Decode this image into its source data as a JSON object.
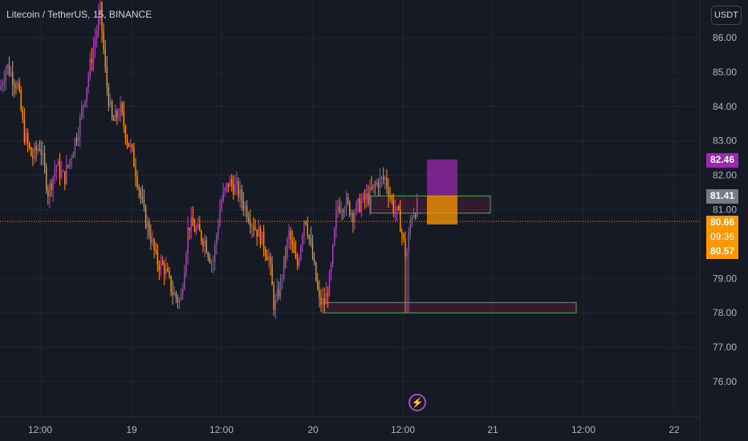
{
  "header": {
    "title": "Litecoin / TetherUS, 15, BINANCE",
    "currency_button": "USDT"
  },
  "colors": {
    "background": "#161a25",
    "bull": "#ab47bc",
    "bear": "#ff9800",
    "grid": "#232733",
    "axis_text": "#b2b5be",
    "box_green": "#4caf50",
    "last_price_line": "#ff9800"
  },
  "labels": {
    "target_price": "82.46",
    "entry_price": "81.41",
    "last_price": "80.66",
    "countdown": "09:36",
    "stop_price": "80.57"
  },
  "chart_data": {
    "type": "candlestick",
    "title": "Litecoin / TetherUS, 15, BINANCE",
    "ylim": [
      75.4,
      86.8
    ],
    "y_ticks": [
      "86.00",
      "85.00",
      "84.00",
      "83.00",
      "82.00",
      "81.00",
      "79.00",
      "78.00",
      "77.00",
      "76.00"
    ],
    "x_ticks": [
      "12:00",
      "19",
      "12:00",
      "20",
      "12:00",
      "21",
      "12:00",
      "22"
    ],
    "grid": true,
    "last_price": 80.66,
    "path": [
      [
        0,
        84.5
      ],
      [
        8,
        85.2
      ],
      [
        15,
        84.9
      ],
      [
        22,
        84.6
      ],
      [
        30,
        83.2
      ],
      [
        40,
        82.5
      ],
      [
        50,
        82.9
      ],
      [
        60,
        81.5
      ],
      [
        70,
        82.3
      ],
      [
        80,
        81.9
      ],
      [
        90,
        82.7
      ],
      [
        100,
        83.6
      ],
      [
        110,
        84.9
      ],
      [
        118,
        85.9
      ],
      [
        125,
        86.8
      ],
      [
        132,
        84.8
      ],
      [
        140,
        83.5
      ],
      [
        150,
        83.9
      ],
      [
        158,
        83.1
      ],
      [
        165,
        82.6
      ],
      [
        172,
        81.8
      ],
      [
        180,
        80.8
      ],
      [
        188,
        80.2
      ],
      [
        195,
        79.5
      ],
      [
        205,
        79.3
      ],
      [
        215,
        78.6
      ],
      [
        225,
        78.3
      ],
      [
        235,
        80.6
      ],
      [
        245,
        80.4
      ],
      [
        255,
        80.1
      ],
      [
        265,
        79.4
      ],
      [
        275,
        81.2
      ],
      [
        285,
        81.8
      ],
      [
        295,
        81.6
      ],
      [
        305,
        81.1
      ],
      [
        315,
        80.6
      ],
      [
        325,
        80.2
      ],
      [
        335,
        79.6
      ],
      [
        342,
        78.1
      ],
      [
        350,
        78.9
      ],
      [
        360,
        80.3
      ],
      [
        370,
        79.3
      ],
      [
        380,
        80.9
      ],
      [
        388,
        79.8
      ],
      [
        398,
        78.3
      ],
      [
        405,
        78.3
      ],
      [
        412,
        79.1
      ],
      [
        420,
        81.1
      ],
      [
        430,
        81.2
      ],
      [
        440,
        80.9
      ],
      [
        450,
        81.2
      ],
      [
        460,
        81.4
      ],
      [
        470,
        81.8
      ],
      [
        480,
        81.9
      ],
      [
        490,
        81.1
      ],
      [
        498,
        80.7
      ],
      [
        506,
        79.6
      ],
      [
        513,
        80.9
      ],
      [
        520,
        81.1
      ]
    ],
    "measure_boxes": [
      {
        "price_top": 82.46,
        "price_bottom": 81.41,
        "color": "#9c27b0"
      },
      {
        "price_top": 81.41,
        "price_bottom": 80.57,
        "color": "#ff9800"
      }
    ],
    "zones": [
      {
        "price_top": 81.4,
        "price_bottom": 80.9
      },
      {
        "price_top": 78.3,
        "price_bottom": 78.0
      }
    ]
  }
}
